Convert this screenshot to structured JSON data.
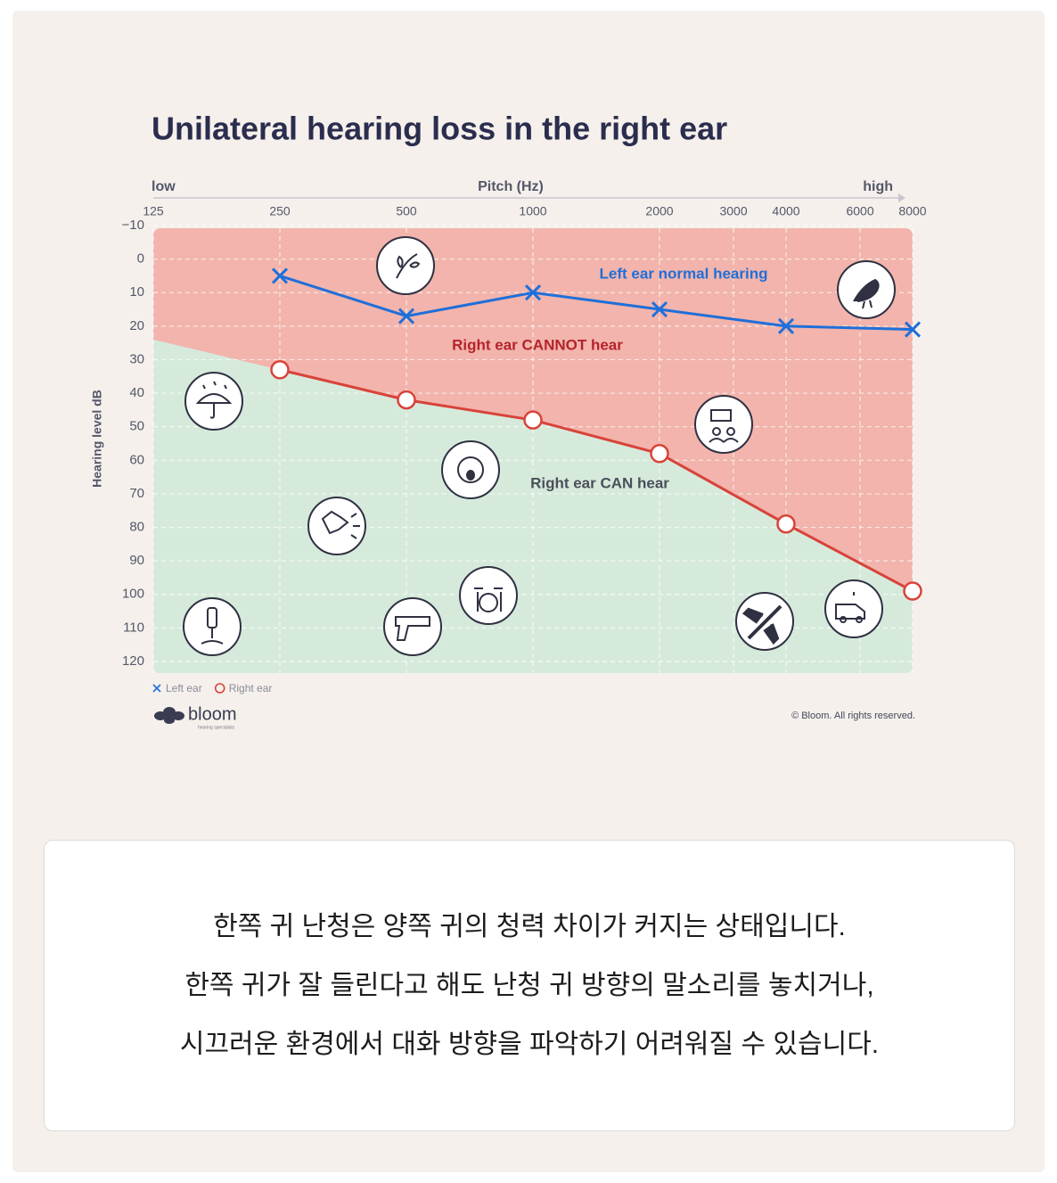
{
  "chart_data": {
    "type": "line",
    "title": "Unilateral hearing loss in the right ear",
    "x_axis_label": "Pitch (Hz)",
    "x_axis_low": "low",
    "x_axis_high": "high",
    "y_axis_label": "Hearing level dB",
    "x": [
      250,
      500,
      1000,
      2000,
      4000,
      8000
    ],
    "xlim": [
      125,
      8000
    ],
    "xticks": [
      125,
      250,
      500,
      1000,
      2000,
      3000,
      4000,
      6000,
      8000
    ],
    "log_x": true,
    "ylim": [
      -10,
      120
    ],
    "y_inverted": true,
    "yticks": [
      {
        "value": -10,
        "label": "−10"
      },
      0,
      10,
      20,
      30,
      40,
      50,
      60,
      70,
      80,
      90,
      100,
      110,
      120
    ],
    "grid": true,
    "series": [
      {
        "name": "Left ear",
        "color": "#1f6fd9",
        "marker": "x",
        "values": [
          5,
          17,
          10,
          15,
          20,
          21
        ]
      },
      {
        "name": "Right ear",
        "color": "#d8433a",
        "marker": "o",
        "values": [
          33,
          42,
          48,
          58,
          79,
          99
        ]
      }
    ],
    "annotations": [
      "Left ear normal hearing",
      "Right ear CANNOT hear",
      "Right ear CAN hear"
    ],
    "legend": "bottom-left",
    "brand": "bloom",
    "brand_tagline": "hearing specialists",
    "copyright": "© Bloom. All rights reserved."
  },
  "caption": {
    "lines": [
      "한쪽 귀 난청은 양쪽 귀의 청력 차이가 커지는 상태입니다.",
      "한쪽 귀가 잘 들린다고 해도 난청 귀 방향의 말소리를 놓치거나,",
      "시끄러운 환경에서 대화 방향을 파악하기 어려워질 수 있습니다."
    ]
  }
}
